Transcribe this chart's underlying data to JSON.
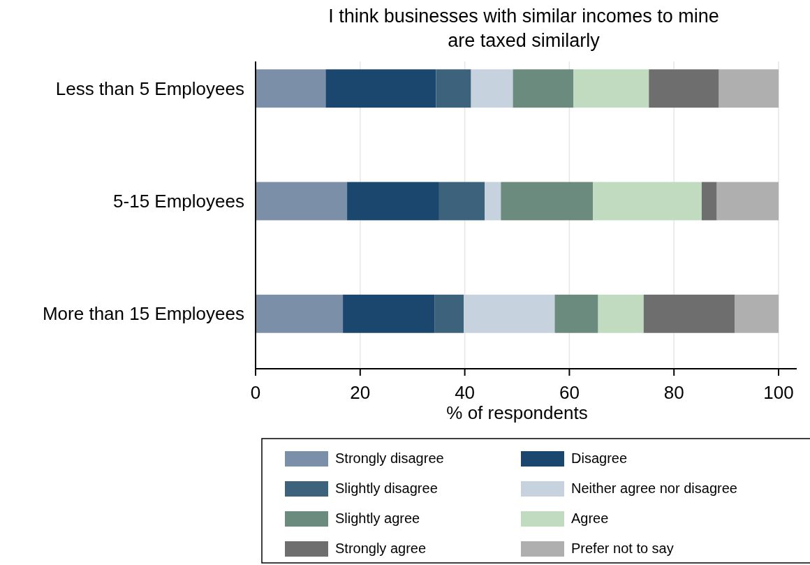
{
  "chart_data": {
    "type": "bar",
    "orientation": "horizontal",
    "stacked": true,
    "title": "I think businesses with similar incomes to mine\nare taxed similarly",
    "xlabel": "% of respondents",
    "categories": [
      "Less than 5 Employees",
      "5-15 Employees",
      "More than 15 Employees"
    ],
    "series": [
      {
        "name": "Strongly disagree",
        "color": "#7b90a8",
        "values": [
          13.4,
          17.5,
          16.7
        ]
      },
      {
        "name": "Disagree",
        "color": "#1b466e",
        "values": [
          21.1,
          17.6,
          17.5
        ]
      },
      {
        "name": "Slightly disagree",
        "color": "#3d627c",
        "values": [
          6.7,
          8.7,
          5.6
        ]
      },
      {
        "name": "Neither agree nor disagree",
        "color": "#c6d2de",
        "values": [
          8.0,
          3.1,
          17.4
        ]
      },
      {
        "name": "Slightly agree",
        "color": "#6b8b7e",
        "values": [
          11.6,
          17.6,
          8.3
        ]
      },
      {
        "name": "Agree",
        "color": "#c0dbc0",
        "values": [
          14.4,
          20.8,
          8.7
        ]
      },
      {
        "name": "Strongly agree",
        "color": "#6e6e6e",
        "values": [
          13.4,
          2.9,
          17.4
        ]
      },
      {
        "name": "Prefer not to say",
        "color": "#afafaf",
        "values": [
          11.4,
          11.8,
          8.4
        ]
      }
    ],
    "xlim": [
      0,
      100
    ],
    "xticks": [
      0,
      20,
      40,
      60,
      80,
      100
    ],
    "grid": "x",
    "legend": "bottom"
  }
}
